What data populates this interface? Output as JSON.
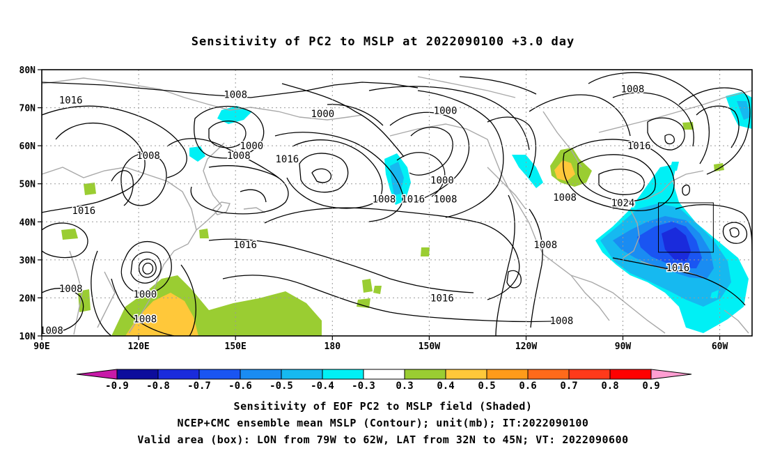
{
  "title": "Sensitivity of PC2 to MSLP at 2022090100 +3.0 day",
  "lat_labels": [
    "80N",
    "70N",
    "60N",
    "50N",
    "40N",
    "30N",
    "20N",
    "10N"
  ],
  "lon_labels": [
    "90E",
    "120E",
    "150E",
    "180",
    "150W",
    "120W",
    "90W",
    "60W"
  ],
  "contour_labels": [
    {
      "text": "1016",
      "lon": 99,
      "lat": 72
    },
    {
      "text": "1008",
      "lon": 150,
      "lat": 73.5
    },
    {
      "text": "1000",
      "lon": 177,
      "lat": 68.5
    },
    {
      "text": "1000",
      "lon": 215,
      "lat": 69.3
    },
    {
      "text": "1008",
      "lon": 273,
      "lat": 75
    },
    {
      "text": "1000",
      "lon": 155,
      "lat": 60
    },
    {
      "text": "1016",
      "lon": 166,
      "lat": 56.5
    },
    {
      "text": "1008",
      "lon": 151,
      "lat": 57.5
    },
    {
      "text": "1008",
      "lon": 123,
      "lat": 57.5
    },
    {
      "text": "1016",
      "lon": 275,
      "lat": 60
    },
    {
      "text": "1000",
      "lon": 214,
      "lat": 51
    },
    {
      "text": "1008",
      "lon": 196,
      "lat": 46
    },
    {
      "text": "1016",
      "lon": 205,
      "lat": 46
    },
    {
      "text": "1008",
      "lon": 215,
      "lat": 46
    },
    {
      "text": "1008",
      "lon": 252,
      "lat": 46.5
    },
    {
      "text": "1024",
      "lon": 270,
      "lat": 45
    },
    {
      "text": "1016",
      "lon": 103,
      "lat": 43
    },
    {
      "text": "1016",
      "lon": 153,
      "lat": 34
    },
    {
      "text": "1008",
      "lon": 246,
      "lat": 34
    },
    {
      "text": "1016",
      "lon": 287,
      "lat": 28
    },
    {
      "text": "1008",
      "lon": 99,
      "lat": 22.5
    },
    {
      "text": "1000",
      "lon": 122,
      "lat": 21
    },
    {
      "text": "1016",
      "lon": 214,
      "lat": 20
    },
    {
      "text": "1008",
      "lon": 122,
      "lat": 14.5
    },
    {
      "text": "1008",
      "lon": 251,
      "lat": 14
    },
    {
      "text": "1008",
      "lon": 93,
      "lat": 11.5
    }
  ],
  "colorbar": {
    "labels": [
      "-0.9",
      "-0.8",
      "-0.7",
      "-0.6",
      "-0.5",
      "-0.4",
      "-0.3",
      "0.3",
      "0.4",
      "0.5",
      "0.6",
      "0.7",
      "0.8",
      "0.9"
    ],
    "colors": [
      "#0d0d9c",
      "#1a2bdc",
      "#1a55f2",
      "#1a8cf2",
      "#16b9f0",
      "#00f0f5",
      "#ffffff",
      "#9acd32",
      "#ffc83a",
      "#ff9b1a",
      "#ff6a1a",
      "#ff3a1a",
      "#ff0000"
    ],
    "low_end_color": "#c71aa8",
    "high_end_color": "#ff9ed2"
  },
  "captions": [
    "Sensitivity of EOF PC2 to MSLP field (Shaded)",
    "NCEP+CMC ensemble mean MSLP (Contour); unit(mb); IT:2022090100",
    "Valid area (box): LON from 79W to 62W, LAT from 32N to 45N; VT: 2022090600"
  ],
  "valid_box": {
    "lon_min": 281,
    "lon_max": 298,
    "lat_min": 32,
    "lat_max": 45
  },
  "map_extent": {
    "lon_min": 90,
    "lon_max": 310,
    "lat_min": 10,
    "lat_max": 80
  },
  "colors": {
    "contour": "#000000",
    "coast": "#a8a8a8",
    "grid": "#999999"
  }
}
